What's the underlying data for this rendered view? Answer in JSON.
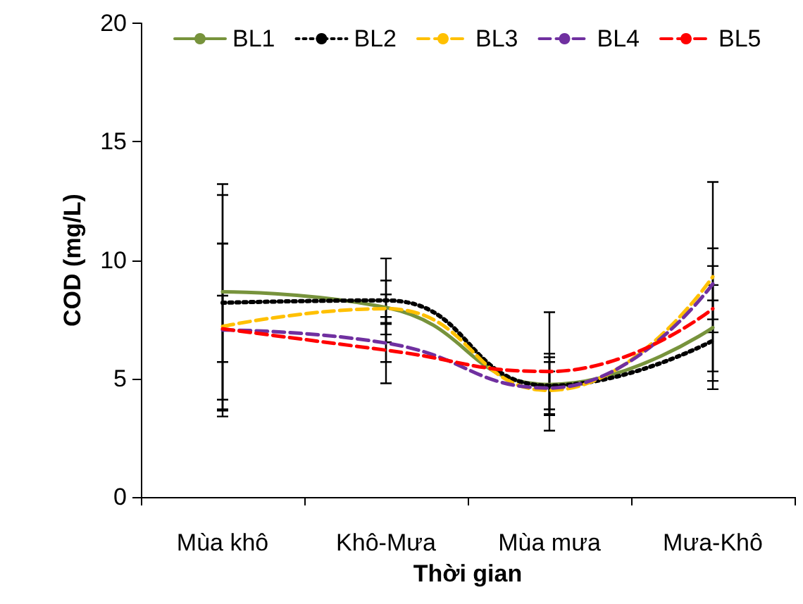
{
  "chart_data": {
    "type": "line",
    "xlabel": "Thời gian",
    "ylabel": "COD (mg/L)",
    "categories": [
      "Mùa khô",
      "Khô-Mưa",
      "Mùa mưa",
      "Mưa-Khô"
    ],
    "ylim": [
      0,
      20
    ],
    "yticks": [
      0,
      5,
      10,
      15,
      20
    ],
    "grid": false,
    "legend": "top",
    "marker": "none",
    "series": [
      {
        "name": "BL1",
        "color": "#77933c",
        "line_style": "solid",
        "values": [
          8.66,
          8.0,
          4.75,
          7.15
        ],
        "errors": [
          4.55,
          1.14,
          1.3,
          2.6
        ]
      },
      {
        "name": "BL2",
        "color": "#000000",
        "line_style": "dotted",
        "values": [
          8.2,
          8.3,
          4.7,
          6.6
        ],
        "errors": [
          4.55,
          1.77,
          1.2,
          1.7
        ]
      },
      {
        "name": "BL3",
        "color": "#ffc000",
        "line_style": "dashed",
        "values": [
          7.2,
          7.95,
          4.5,
          9.3
        ],
        "errors": [
          3.5,
          0.6,
          0.8,
          4.0
        ]
      },
      {
        "name": "BL4",
        "color": "#7030a0",
        "line_style": "dashed",
        "values": [
          7.05,
          6.5,
          4.6,
          9.0
        ],
        "errors": [
          3.65,
          0.8,
          1.1,
          1.5
        ]
      },
      {
        "name": "BL5",
        "color": "#ff0000",
        "line_style": "dashed",
        "values": [
          7.1,
          6.2,
          5.3,
          7.95
        ],
        "errors": [
          1.4,
          1.4,
          2.5,
          1.0
        ]
      }
    ]
  }
}
